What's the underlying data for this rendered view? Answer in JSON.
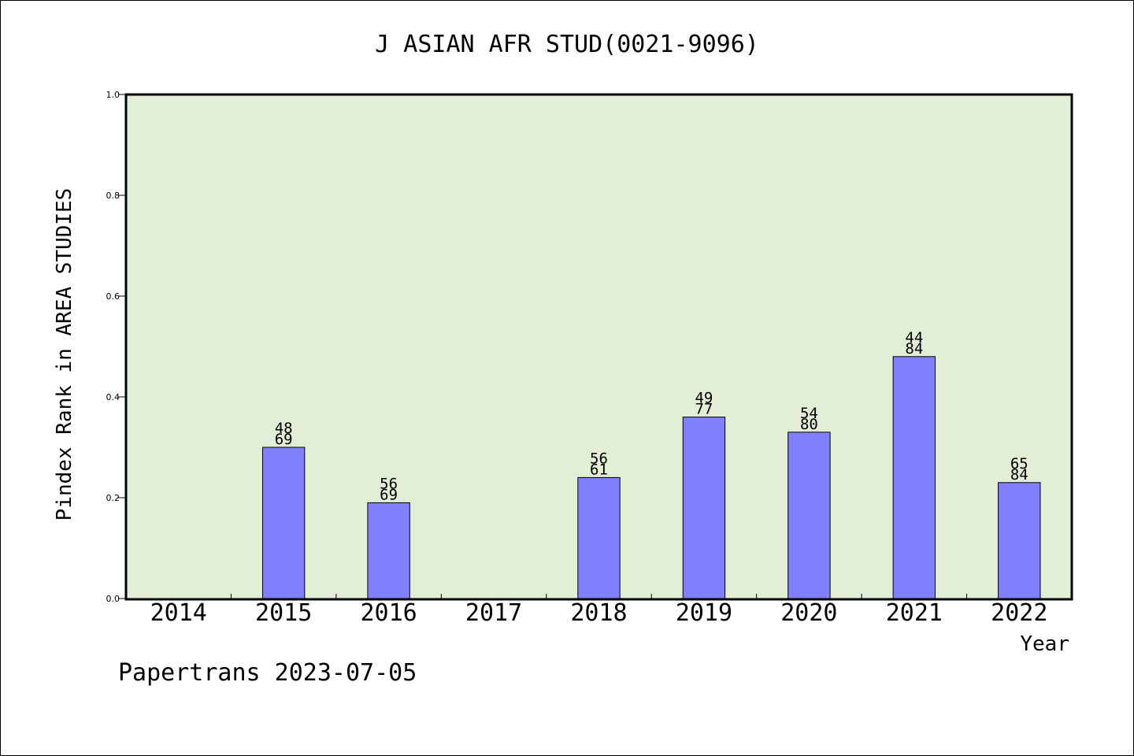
{
  "chart_data": {
    "type": "bar",
    "title": "J ASIAN AFR STUD(0021-9096)",
    "xlabel": "Year",
    "ylabel": "Pindex Rank in AREA STUDIES",
    "categories": [
      "2014",
      "2015",
      "2016",
      "2017",
      "2018",
      "2019",
      "2020",
      "2021",
      "2022"
    ],
    "values": [
      null,
      0.3,
      0.19,
      null,
      0.24,
      0.36,
      0.33,
      0.48,
      0.23
    ],
    "rank_labels": [
      null,
      "48",
      "56",
      null,
      "56",
      "49",
      "54",
      "44",
      "65"
    ],
    "total_labels": [
      null,
      "69",
      "69",
      null,
      "61",
      "77",
      "80",
      "84",
      "84"
    ],
    "ylim": [
      0,
      1.0
    ],
    "yticks": [
      "0.0",
      "0.2",
      "0.4",
      "0.6",
      "0.8",
      "1.0"
    ],
    "grid": false,
    "colors": {
      "plot_bg": "#e2efd6",
      "bar": "#8080ff",
      "bar_edge": "#000000"
    }
  },
  "footer": "Papertrans 2023-07-05"
}
